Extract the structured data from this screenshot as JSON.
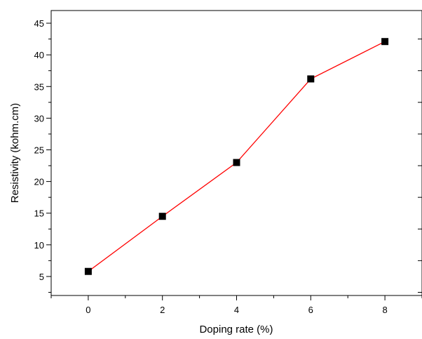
{
  "chart_data": {
    "type": "line",
    "xlabel": "Doping rate (%)",
    "ylabel": "Resistivity (kohm.cm)",
    "xlim": [
      -1,
      9
    ],
    "ylim": [
      2,
      47
    ],
    "x_ticks": [
      "0",
      "2",
      "4",
      "6",
      "8"
    ],
    "y_ticks": [
      "5",
      "10",
      "15",
      "20",
      "25",
      "30",
      "35",
      "40",
      "45"
    ],
    "series": [
      {
        "x": [
          0,
          2,
          4,
          6,
          8
        ],
        "y": [
          5.8,
          14.5,
          23.0,
          36.2,
          42.1
        ],
        "line_color": "#ff0000",
        "marker": "square",
        "marker_color": "#000000"
      }
    ],
    "grid": false,
    "legend": false
  }
}
